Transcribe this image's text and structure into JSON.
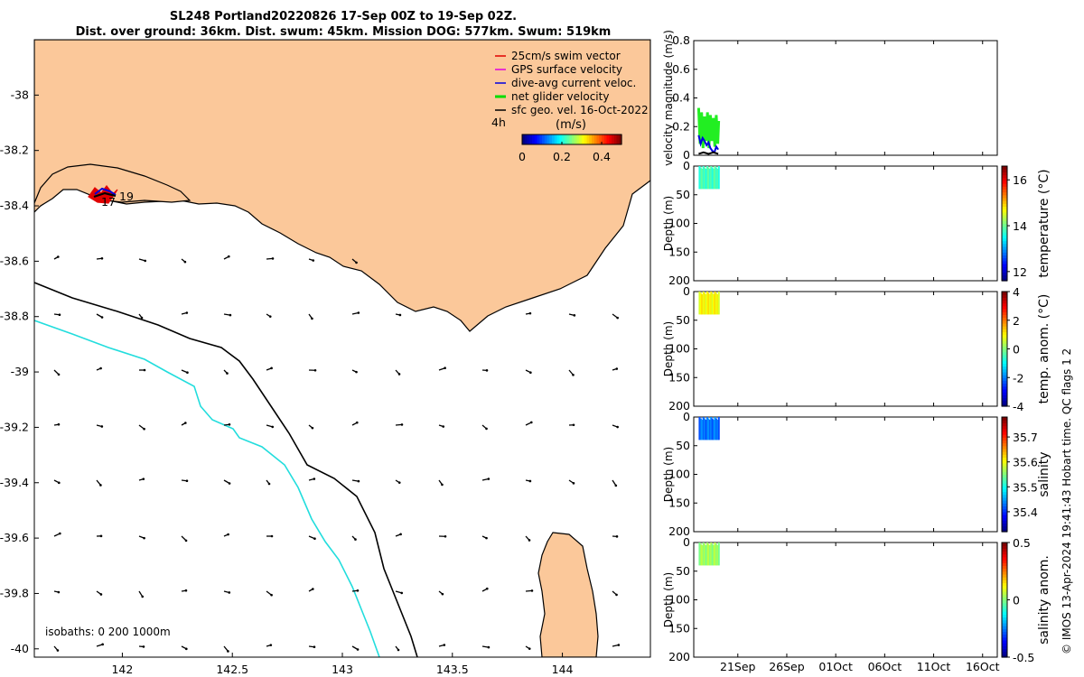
{
  "title": {
    "line1": "SL248 Portland20220826 17-Sep 00Z to 19-Sep 02Z.",
    "line2": "Dist. over ground: 36km. Dist. swum: 45km. Mission DOG: 577km. Swum: 519km"
  },
  "map": {
    "lat_ticks": [
      "-38",
      "-38.2",
      "-38.4",
      "-38.6",
      "-38.8",
      "-39",
      "-39.2",
      "-39.4",
      "-39.6",
      "-39.8",
      "-40"
    ],
    "lon_ticks": [
      "142",
      "142.5",
      "143",
      "143.5",
      "144"
    ],
    "xlim": [
      141.6,
      144.4
    ],
    "ylim": [
      -40.03,
      -37.8
    ],
    "isobath_label": "isobaths: 0   200  1000m",
    "track_labels": {
      "start": "17",
      "end": "19"
    },
    "legend": [
      {
        "label": "25cm/s swim vector",
        "color": "#e00000"
      },
      {
        "label": "GPS surface velocity",
        "color": "#e000e0"
      },
      {
        "label": "dive-avg current veloc.",
        "color": "#0000e0"
      },
      {
        "label": "net glider velocity",
        "color": "#00dd00"
      },
      {
        "label": "sfc geo. vel. 16-Oct-2022",
        "color": "#000000"
      }
    ],
    "time_marker": "4h",
    "colorbar": {
      "label": "(m/s)",
      "ticks": [
        "0",
        "0.2",
        "0.4"
      ],
      "range": [
        0,
        0.5
      ]
    },
    "colors": {
      "land": "#fbc89a",
      "sea": "#ffffff",
      "isobath_200": "#000000",
      "isobath_1000": "#22dddd"
    }
  },
  "chart_data": [
    {
      "type": "line",
      "name": "velocity",
      "ylabel": "velocity magnitude (m/s)",
      "ylim": [
        0,
        0.8
      ],
      "yticks": [
        "0",
        "0.2",
        "0.4",
        "0.6",
        "0.8"
      ],
      "series": [
        {
          "name": "net glider velocity",
          "color": "#22ee22",
          "x": [
            17.0,
            17.15,
            17.3,
            17.45,
            17.6,
            17.75,
            17.9,
            18.05,
            18.2,
            18.35,
            18.5,
            18.65,
            18.8,
            18.95,
            19.05
          ],
          "y": [
            0.33,
            0.08,
            0.3,
            0.05,
            0.27,
            0.1,
            0.3,
            0.05,
            0.28,
            0.1,
            0.26,
            0.06,
            0.28,
            0.08,
            0.24
          ]
        },
        {
          "name": "dive-avg current veloc.",
          "color": "#0000dd",
          "x": [
            17.0,
            17.2,
            17.4,
            17.6,
            17.8,
            18.0,
            18.2,
            18.4,
            18.6,
            18.8,
            19.0
          ],
          "y": [
            0.14,
            0.08,
            0.12,
            0.1,
            0.07,
            0.09,
            0.05,
            0.03,
            0.02,
            0.06,
            0.04
          ]
        },
        {
          "name": "sfc geo. vel.",
          "color": "#000000",
          "x": [
            17.0,
            17.5,
            18.0,
            18.5,
            19.0
          ],
          "y": [
            0.01,
            0.02,
            0.01,
            0.02,
            0.01
          ]
        }
      ]
    },
    {
      "type": "heatmap",
      "name": "temperature",
      "clabel": "temperature (°C)",
      "ylabel": "Depth (m)",
      "ylim": [
        0,
        200
      ],
      "cticks": [
        "12",
        "14",
        "16"
      ],
      "crange": [
        11.6,
        16.6
      ],
      "value": 13.8,
      "depth_max": 40
    },
    {
      "type": "heatmap",
      "name": "temp_anom",
      "clabel": "temp. anom. (°C)",
      "ylabel": "Depth (m)",
      "ylim": [
        0,
        200
      ],
      "cticks": [
        "-4",
        "-2",
        "0",
        "2",
        "4"
      ],
      "crange": [
        -4,
        4
      ],
      "value": 1.0,
      "depth_max": 40
    },
    {
      "type": "heatmap",
      "name": "salinity",
      "clabel": "salinity",
      "ylabel": "Depth (m)",
      "ylim": [
        0,
        200
      ],
      "cticks": [
        "35.4",
        "35.5",
        "35.6",
        "35.7"
      ],
      "crange": [
        35.32,
        35.78
      ],
      "value": 35.43,
      "depth_max": 40
    },
    {
      "type": "heatmap",
      "name": "sal_anom",
      "clabel": "salinity anom.",
      "ylabel": "Depth (m)",
      "ylim": [
        0,
        200
      ],
      "cticks": [
        "-0.5",
        "0",
        "0.5"
      ],
      "crange": [
        -0.5,
        0.5
      ],
      "value": 0.03,
      "depth_max": 40
    }
  ],
  "time_axis": {
    "xlim": [
      16.5,
      47.5
    ],
    "ticks": [
      {
        "label": "21Sep",
        "day": 21
      },
      {
        "label": "26Sep",
        "day": 26
      },
      {
        "label": "01Oct",
        "day": 31
      },
      {
        "label": "06Oct",
        "day": 36
      },
      {
        "label": "11Oct",
        "day": 41
      },
      {
        "label": "16Oct",
        "day": 46
      }
    ]
  },
  "depth_ticks": [
    "0",
    "50",
    "100",
    "150",
    "200"
  ],
  "footer": "© IMOS 13-Apr-2024 19:41:43 Hobart time. QC flags 1  2"
}
